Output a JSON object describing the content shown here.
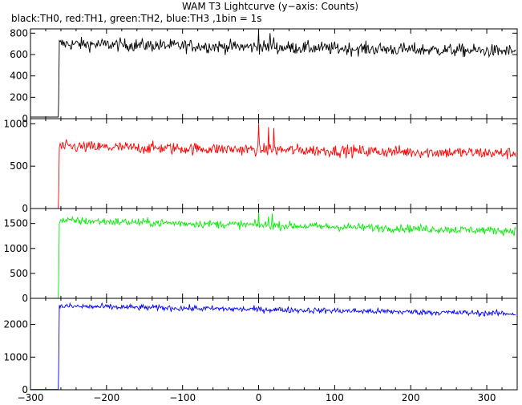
{
  "title": "WAM T3 Lightcurve (y−axis: Counts)",
  "subtitle": "black:TH0, red:TH1, green:TH2, blue:TH3 ,1bin = 1s",
  "chart_data": [
    {
      "type": "line",
      "name": "TH0",
      "color": "#000000",
      "xlim": [
        -300,
        340
      ],
      "ylim": [
        0,
        840
      ],
      "yticks": [
        0,
        200,
        400,
        600,
        800
      ],
      "ytick_labels": [
        "0",
        "200",
        "400",
        "600",
        "800"
      ],
      "turn_on_x": -263,
      "pre_level": 15,
      "start_level": 700,
      "end_level": 630,
      "noise": 30,
      "spikes": [
        {
          "x": 0,
          "y": 820
        },
        {
          "x": 15,
          "y": 800
        },
        {
          "x": 20,
          "y": 760
        }
      ]
    },
    {
      "type": "line",
      "name": "TH1",
      "color": "#ff0000",
      "xlim": [
        -300,
        340
      ],
      "ylim": [
        0,
        1060
      ],
      "yticks": [
        0,
        500,
        1000
      ],
      "ytick_labels": [
        "0",
        "500",
        "1000"
      ],
      "turn_on_x": -263,
      "pre_level": 0,
      "start_level": 730,
      "end_level": 650,
      "noise": 35,
      "spikes": [
        {
          "x": 0,
          "y": 1000
        },
        {
          "x": 13,
          "y": 960
        },
        {
          "x": 20,
          "y": 950
        }
      ]
    },
    {
      "type": "line",
      "name": "TH2",
      "color": "#00ee00",
      "xlim": [
        -300,
        340
      ],
      "ylim": [
        0,
        1800
      ],
      "yticks": [
        0,
        500,
        1000,
        1500
      ],
      "ytick_labels": [
        "0",
        "500",
        "1000",
        "1500"
      ],
      "turn_on_x": -263,
      "pre_level": 0,
      "start_level": 1560,
      "end_level": 1350,
      "noise": 40,
      "spikes": [
        {
          "x": 0,
          "y": 1720
        },
        {
          "x": 13,
          "y": 1640
        },
        {
          "x": 18,
          "y": 1700
        }
      ]
    },
    {
      "type": "line",
      "name": "TH3",
      "color": "#0000ff",
      "xlim": [
        -300,
        340
      ],
      "ylim": [
        0,
        2800
      ],
      "yticks": [
        0,
        1000,
        2000
      ],
      "ytick_labels": [
        "0",
        "1000",
        "2000"
      ],
      "turn_on_x": -263,
      "pre_level": 10,
      "start_level": 2560,
      "end_level": 2330,
      "noise": 45,
      "spikes": []
    }
  ],
  "xaxis": {
    "ticks": [
      -300,
      -200,
      -100,
      0,
      100,
      200,
      300
    ],
    "tick_labels": [
      "−300",
      "−200",
      "−100",
      "0",
      "100",
      "200",
      "300"
    ]
  }
}
